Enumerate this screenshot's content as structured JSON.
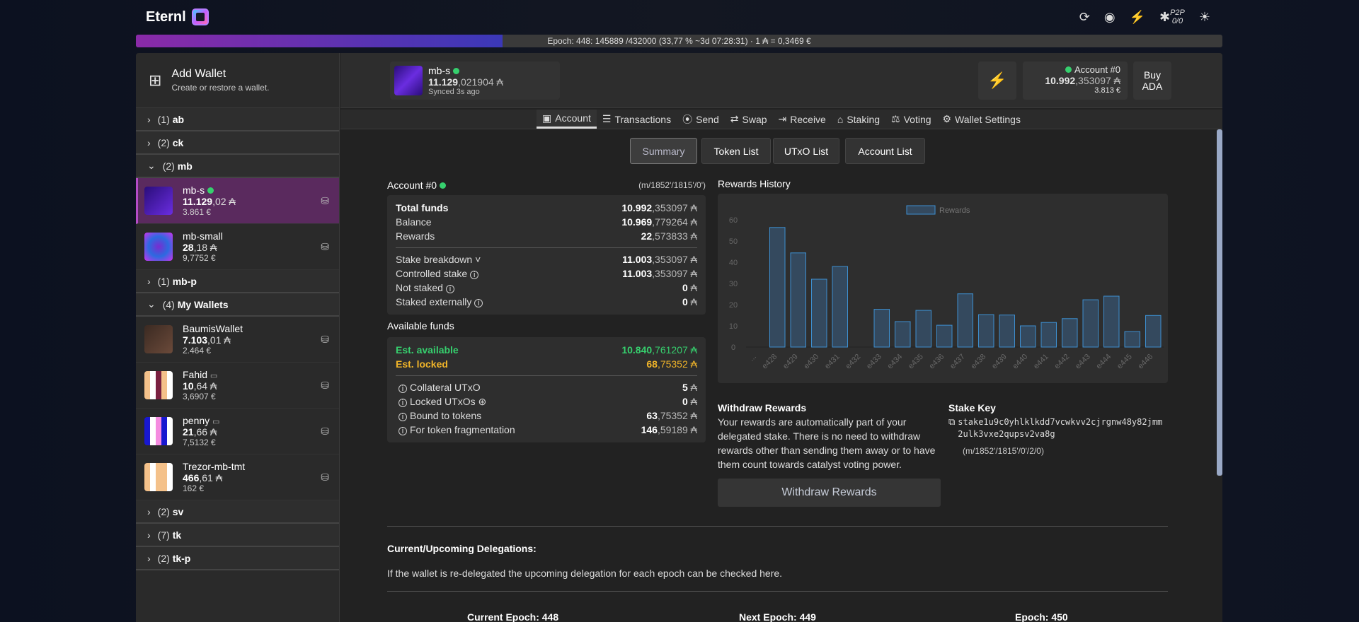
{
  "app": {
    "logo": "Eternl",
    "p2p_label": "P2P",
    "p2p_count": "0/0"
  },
  "epoch": {
    "text": "Epoch: 448: 145889 /432000 (33,77 % ~3d 07:28:31) · 1 ₳ = 0,3469 €",
    "progress_percent": 33.77
  },
  "sidebar": {
    "add_title": "Add Wallet",
    "add_subtitle": "Create or restore a wallet.",
    "groups_top": [
      {
        "count": "(1)",
        "name": "ab",
        "open": false
      },
      {
        "count": "(2)",
        "name": "ck",
        "open": false
      },
      {
        "count": "(2)",
        "name": "mb",
        "open": true
      }
    ],
    "mb_wallets": [
      {
        "name": "mb-s",
        "int": "11.129",
        "dec": ",02 ₳",
        "eur": "3.861 €",
        "selected": true
      },
      {
        "name": "mb-small",
        "int": "28",
        "dec": ",18 ₳",
        "eur": "9,7752 €"
      }
    ],
    "groups_mid": [
      {
        "count": "(1)",
        "name": "mb-p"
      },
      {
        "count": "(4)",
        "name": "My Wallets"
      }
    ],
    "my_wallets": [
      {
        "name": "BaumisWallet",
        "int": "7.103",
        "dec": ",01 ₳",
        "eur": "2.464 €"
      },
      {
        "name": "Fahid",
        "int": "10",
        "dec": ",64 ₳",
        "eur": "3,6907 €"
      },
      {
        "name": "penny",
        "int": "21",
        "dec": ",66 ₳",
        "eur": "7,5132 €"
      },
      {
        "name": "Trezor-mb-tmt",
        "int": "466",
        "dec": ",61 ₳",
        "eur": "162 €"
      }
    ],
    "groups_bottom": [
      {
        "count": "(2)",
        "name": "sv"
      },
      {
        "count": "(7)",
        "name": "tk"
      },
      {
        "count": "(2)",
        "name": "tk-p"
      }
    ]
  },
  "header": {
    "wallet_name": "mb-s",
    "wallet_int": "11.129",
    "wallet_dec": ",021904 ₳",
    "synced": "Synced 3s ago",
    "account": "Account #0",
    "acc_int": "10.992",
    "acc_dec": ",353097 ₳",
    "acc_eur": "3.813 €",
    "buy": "Buy ADA"
  },
  "nav": [
    "Account",
    "Transactions",
    "Send",
    "Swap",
    "Receive",
    "Staking",
    "Voting",
    "Wallet Settings"
  ],
  "subtabs": [
    "Summary",
    "Token List",
    "UTxO List",
    "Account List"
  ],
  "account": {
    "title": "Account #0",
    "path": "(m/1852'/1815'/0')",
    "rows1": [
      {
        "label": "Total funds",
        "int": "10.992",
        "dec": ",353097 ₳"
      },
      {
        "label": "Balance",
        "int": "10.969",
        "dec": ",779264 ₳"
      },
      {
        "label": "Rewards",
        "int": "22",
        "dec": ",573833 ₳"
      }
    ],
    "rows2": [
      {
        "label": "Stake breakdown ˅",
        "int": "11.003",
        "dec": ",353097 ₳"
      },
      {
        "label": "Controlled stake",
        "int": "11.003",
        "dec": ",353097 ₳"
      },
      {
        "label": "Not staked",
        "int": "0",
        "dec": " ₳"
      },
      {
        "label": "Staked externally",
        "int": "0",
        "dec": " ₳"
      }
    ]
  },
  "available": {
    "title": "Available funds",
    "est_avail": "Est. available",
    "ea_int": "10.840",
    "ea_dec": ",761207 ₳",
    "est_locked": "Est. locked",
    "el_int": "68",
    "el_dec": ",75352 ₳",
    "rows": [
      {
        "label": "Collateral UTxO",
        "int": "5",
        "dec": " ₳"
      },
      {
        "label": "Locked UTxOs ⊛",
        "int": "0",
        "dec": " ₳"
      },
      {
        "label": "Bound to tokens",
        "int": "63",
        "dec": ",75352 ₳"
      },
      {
        "label": "For token fragmentation",
        "int": "146",
        "dec": ",59189 ₳"
      }
    ]
  },
  "chart_data": {
    "type": "bar",
    "title": "Rewards History",
    "legend": "Rewards",
    "legend_position": "top",
    "ylim": [
      0,
      60
    ],
    "yticks": [
      0,
      10,
      20,
      30,
      40,
      50,
      60
    ],
    "categories": [
      "...",
      "e428",
      "e429",
      "e430",
      "e431",
      "e432",
      "e433",
      "e434",
      "e435",
      "e436",
      "e437",
      "e438",
      "e439",
      "e440",
      "e441",
      "e442",
      "e443",
      "e444",
      "e445",
      "e446"
    ],
    "values": [
      0,
      56.4,
      44.4,
      32,
      38,
      0,
      17.8,
      12,
      17.3,
      10.3,
      25.1,
      15.3,
      15.1,
      10,
      11.6,
      13.4,
      22.3,
      24,
      7.3,
      14.9
    ]
  },
  "withdraw": {
    "title": "Withdraw Rewards",
    "text": "Your rewards are automatically part of your delegated stake. There is no need to withdraw rewards other than sending them away or to have them count towards catalyst voting power.",
    "button": "Withdraw Rewards"
  },
  "stake": {
    "title": "Stake Key",
    "key": "stake1u9c0yhlklkdd7vcwkvv2cjrgnw48y82jmm2ulk3vxe2qupsv2va8g",
    "path": "(m/1852'/1815'/0'/2/0)"
  },
  "delegations": {
    "title": "Current/Upcoming Delegations:",
    "text": "If the wallet is re-delegated the upcoming delegation for each epoch can be checked here.",
    "epochs": [
      "Current Epoch: 448",
      "Next Epoch: 449",
      "Epoch: 450"
    ]
  },
  "colors": {
    "green": "#36d06e",
    "yellow": "#f0b429",
    "bar": "#3d8fd0"
  }
}
